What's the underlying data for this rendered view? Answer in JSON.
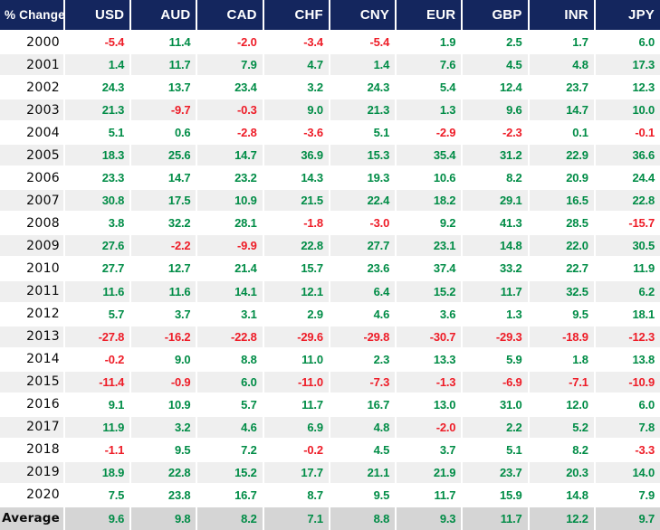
{
  "colors": {
    "header_bg": "#14265E",
    "header_text": "#FFFFFF",
    "positive": "#008C46",
    "negative": "#EE1C27",
    "row_bg": "#FFFFFF",
    "row_alt_bg": "#EFEFEF",
    "average_row_bg": "#D5D5D5",
    "year_text": "#0A0A0A",
    "gap": "#FFFFFF"
  },
  "chart_data": {
    "type": "table",
    "title": "% Change",
    "columns": [
      "USD",
      "AUD",
      "CAD",
      "CHF",
      "CNY",
      "EUR",
      "GBP",
      "INR",
      "JPY"
    ],
    "row_labels": [
      "2000",
      "2001",
      "2002",
      "2003",
      "2004",
      "2005",
      "2006",
      "2007",
      "2008",
      "2009",
      "2010",
      "2011",
      "2012",
      "2013",
      "2014",
      "2015",
      "2016",
      "2017",
      "2018",
      "2019",
      "2020",
      "Average"
    ],
    "rows": [
      [
        -5.4,
        11.4,
        -2.0,
        -3.4,
        -5.4,
        1.9,
        2.5,
        1.7,
        6.0
      ],
      [
        1.4,
        11.7,
        7.9,
        4.7,
        1.4,
        7.6,
        4.5,
        4.8,
        17.3
      ],
      [
        24.3,
        13.7,
        23.4,
        3.2,
        24.3,
        5.4,
        12.4,
        23.7,
        12.3
      ],
      [
        21.3,
        -9.7,
        -0.3,
        9.0,
        21.3,
        1.3,
        9.6,
        14.7,
        10.0
      ],
      [
        5.1,
        0.6,
        -2.8,
        -3.6,
        5.1,
        -2.9,
        -2.3,
        0.1,
        -0.1
      ],
      [
        18.3,
        25.6,
        14.7,
        36.9,
        15.3,
        35.4,
        31.2,
        22.9,
        36.6
      ],
      [
        23.3,
        14.7,
        23.2,
        14.3,
        19.3,
        10.6,
        8.2,
        20.9,
        24.4
      ],
      [
        30.8,
        17.5,
        10.9,
        21.5,
        22.4,
        18.2,
        29.1,
        16.5,
        22.8
      ],
      [
        3.8,
        32.2,
        28.1,
        -1.8,
        -3.0,
        9.2,
        41.3,
        28.5,
        -15.7
      ],
      [
        27.6,
        -2.2,
        -9.9,
        22.8,
        27.7,
        23.1,
        14.8,
        22.0,
        30.5
      ],
      [
        27.7,
        12.7,
        21.4,
        15.7,
        23.6,
        37.4,
        33.2,
        22.7,
        11.9
      ],
      [
        11.6,
        11.6,
        14.1,
        12.1,
        6.4,
        15.2,
        11.7,
        32.5,
        6.2
      ],
      [
        5.7,
        3.7,
        3.1,
        2.9,
        4.6,
        3.6,
        1.3,
        9.5,
        18.1
      ],
      [
        -27.8,
        -16.2,
        -22.8,
        -29.6,
        -29.8,
        -30.7,
        -29.3,
        -18.9,
        -12.3
      ],
      [
        -0.2,
        9.0,
        8.8,
        11.0,
        2.3,
        13.3,
        5.9,
        1.8,
        13.8
      ],
      [
        -11.4,
        -0.9,
        6.0,
        -11.0,
        -7.3,
        -1.3,
        -6.9,
        -7.1,
        -10.9
      ],
      [
        9.1,
        10.9,
        5.7,
        11.7,
        16.7,
        13.0,
        31.0,
        12.0,
        6.0
      ],
      [
        11.9,
        3.2,
        4.6,
        6.9,
        4.8,
        -2.0,
        2.2,
        5.2,
        7.8
      ],
      [
        -1.1,
        9.5,
        7.2,
        -0.2,
        4.5,
        3.7,
        5.1,
        8.2,
        -3.3
      ],
      [
        18.9,
        22.8,
        15.2,
        17.7,
        21.1,
        21.9,
        23.7,
        20.3,
        14.0
      ],
      [
        7.5,
        23.8,
        16.7,
        8.7,
        9.5,
        11.7,
        15.9,
        14.8,
        7.9
      ],
      [
        9.6,
        9.8,
        8.2,
        7.1,
        8.8,
        9.3,
        11.7,
        12.2,
        9.7
      ]
    ],
    "value_format": "one_decimal",
    "color_coding": {
      "negative": "red",
      "positive": "green"
    },
    "layout": {
      "alternating_rows": true,
      "last_row_is_average": true
    }
  }
}
